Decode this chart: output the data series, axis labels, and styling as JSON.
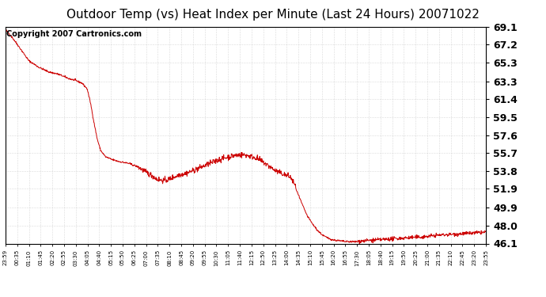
{
  "title": "Outdoor Temp (vs) Heat Index per Minute (Last 24 Hours) 20071022",
  "copyright_text": "Copyright 2007 Cartronics.com",
  "line_color": "#cc0000",
  "background_color": "#ffffff",
  "grid_color": "#bbbbbb",
  "ylim": [
    46.1,
    69.1
  ],
  "yticks": [
    46.1,
    48.0,
    49.9,
    51.9,
    53.8,
    55.7,
    57.6,
    59.5,
    61.4,
    63.3,
    65.3,
    67.2,
    69.1
  ],
  "xtick_labels": [
    "23:59",
    "00:35",
    "01:10",
    "01:45",
    "02:20",
    "02:55",
    "03:30",
    "04:05",
    "04:40",
    "05:15",
    "05:50",
    "06:25",
    "07:00",
    "07:35",
    "08:10",
    "08:45",
    "09:20",
    "09:55",
    "10:30",
    "11:05",
    "11:40",
    "12:15",
    "12:50",
    "13:25",
    "14:00",
    "14:35",
    "15:10",
    "15:45",
    "16:20",
    "16:55",
    "17:30",
    "18:05",
    "18:40",
    "19:15",
    "19:50",
    "20:25",
    "21:00",
    "21:35",
    "22:10",
    "22:45",
    "23:20",
    "23:55"
  ],
  "title_fontsize": 11,
  "copyright_fontsize": 7,
  "ytick_fontsize": 9,
  "xtick_fontsize": 5
}
